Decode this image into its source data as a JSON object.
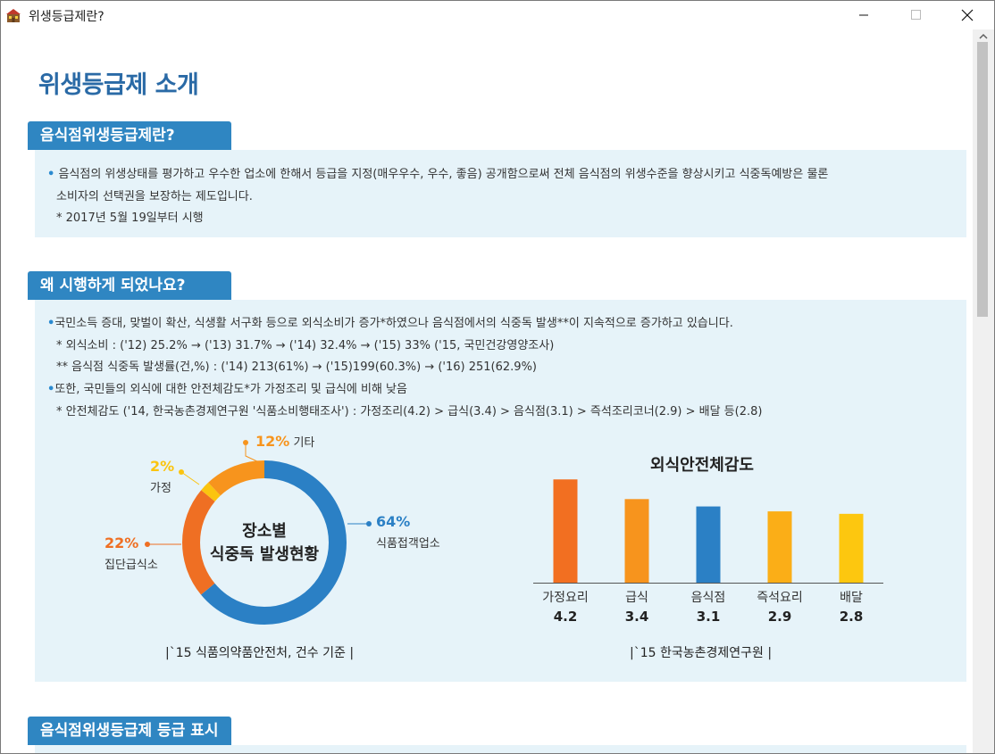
{
  "window": {
    "title": "위생등급제란?"
  },
  "page_title": "위생등급제 소개",
  "section1": {
    "tab": "음식점위생등급제란?",
    "line1": "음식점의 위생상태를 평가하고 우수한 업소에 한해서 등급을 지정(매우우수, 우수, 좋음) 공개함으로써 전체 음식점의 위생수준을 향상시키고 식중독예방은 물론",
    "line2": "소비자의 선택권을 보장하는 제도입니다.",
    "note": "* 2017년 5월 19일부터 시행"
  },
  "section2": {
    "tab": "왜 시행하게 되었나요?",
    "b1": "국민소득 증대, 맞벌이 확산, 식생활 서구화 등으로 외식소비가 증가*하였으나 음식점에서의 식중독 발생**이 지속적으로 증가하고 있습니다.",
    "n1": "* 외식소비 : ('12) 25.2% → ('13) 31.7% → ('14) 32.4% → ('15) 33% ('15, 국민건강영양조사)",
    "n2": "** 음식점 식중독 발생률(건,%) : ('14) 213(61%) → ('15)199(60.3%) → ('16) 251(62.9%)",
    "b2": "또한, 국민들의 외식에 대한 안전체감도*가 가정조리 및 급식에 비해 낮음",
    "n3": "* 안전체감도 ('14, 한국농촌경제연구원 '식품소비행태조사') : 가정조리(4.2) > 급식(3.4) > 음식점(3.1) > 즉석조리코너(2.9) > 배달 등(2.8)"
  },
  "section3": {
    "tab": "음식점위생등급제 등급 표시"
  },
  "chart_data": [
    {
      "type": "pie",
      "title": "장소별 식중독 발생현황",
      "title_line1": "장소별",
      "title_line2": "식중독 발생현황",
      "caption": "|`15 식품의약품안전처, 건수 기준 |",
      "slices": [
        {
          "label": "식품접객업소",
          "pct_text": "64%",
          "value": 64,
          "color": "#2b80c5"
        },
        {
          "label": "집단급식소",
          "pct_text": "22%",
          "value": 22,
          "color": "#ef6f23"
        },
        {
          "label": "가정",
          "pct_text": "2%",
          "value": 2,
          "color": "#fbc40f"
        },
        {
          "label": "기타",
          "pct_text": "12%",
          "value": 12,
          "color": "#f7941d"
        }
      ]
    },
    {
      "type": "bar",
      "title": "외식안전체감도",
      "caption": "|`15 한국농촌경제연구원 |",
      "categories": [
        "가정요리",
        "급식",
        "음식점",
        "즉석요리",
        "배달"
      ],
      "values": [
        4.2,
        3.4,
        3.1,
        2.9,
        2.8
      ],
      "value_labels": [
        "4.2",
        "3.4",
        "3.1",
        "2.9",
        "2.8"
      ],
      "colors": [
        "#f26f21",
        "#f7941d",
        "#2b80c5",
        "#fbae17",
        "#fdc70f"
      ],
      "ylim": [
        0,
        4.5
      ]
    }
  ]
}
